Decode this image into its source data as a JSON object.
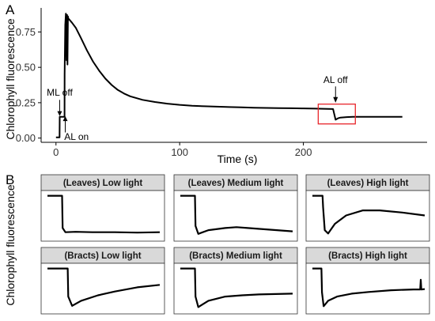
{
  "figure": {
    "panel_a_letter": "A",
    "panel_b_letter": "B",
    "shared_ylabel": "Chlorophyll fluorescence"
  },
  "chart_data": [
    {
      "type": "line",
      "panel": "A",
      "xlabel": "Time (s)",
      "ylabel": "Chlorophyll fluorescence",
      "xlim": [
        -12,
        300
      ],
      "ylim": [
        -0.03,
        0.92
      ],
      "xticks": [
        0,
        100,
        200
      ],
      "yticks": [
        0.0,
        0.25,
        0.5,
        0.75
      ],
      "ytick_labels": [
        "0.00",
        "0.25",
        "0.50",
        "0.75"
      ],
      "grid": false,
      "series": [
        {
          "x": [
            0,
            2.9,
            3.0,
            4,
            5,
            6.9,
            7.0,
            7.5,
            8,
            8.5,
            9,
            9.3,
            9.7,
            10,
            11,
            13,
            16,
            20,
            25,
            30,
            35,
            40,
            45,
            50,
            55,
            60,
            70,
            80,
            90,
            100,
            110,
            120,
            130,
            140,
            150,
            160,
            170,
            180,
            190,
            200,
            210,
            220,
            224,
            226,
            228,
            230,
            235,
            240,
            250,
            260,
            270,
            280
          ],
          "y": [
            0.005,
            0.005,
            0.15,
            0.15,
            0.15,
            0.15,
            0.45,
            0.8,
            0.88,
            0.55,
            0.87,
            0.52,
            0.86,
            0.845,
            0.835,
            0.815,
            0.78,
            0.71,
            0.62,
            0.54,
            0.475,
            0.42,
            0.375,
            0.34,
            0.315,
            0.295,
            0.27,
            0.255,
            0.243,
            0.235,
            0.229,
            0.225,
            0.222,
            0.219,
            0.217,
            0.215,
            0.213,
            0.212,
            0.211,
            0.21,
            0.208,
            0.206,
            0.205,
            0.13,
            0.14,
            0.145,
            0.148,
            0.15,
            0.15,
            0.15,
            0.15,
            0.15
          ]
        }
      ],
      "annotations": [
        {
          "text": "ML off",
          "x": 3,
          "y": 0.3
        },
        {
          "text": "AL on",
          "x": 8,
          "y": 0.01
        },
        {
          "text": "AL off",
          "x": 226,
          "y": 0.39
        }
      ],
      "highlight_box": {
        "xmin": 212,
        "xmax": 242,
        "ymin": 0.1,
        "ymax": 0.24,
        "color": "#e8262b"
      }
    },
    {
      "type": "line",
      "panel": "B",
      "ylabel": "Chlorophyll fluorescence",
      "axis_ticks": false,
      "strip_color": "#d9d9d9",
      "panels": [
        {
          "title": "(Leaves) Low light",
          "x": [
            0,
            0.13,
            0.135,
            0.16,
            0.25,
            0.4,
            0.6,
            0.8,
            1.0
          ],
          "y": [
            0.97,
            0.97,
            0.2,
            0.1,
            0.11,
            0.1,
            0.1,
            0.09,
            0.1
          ]
        },
        {
          "title": "(Leaves) Medium light",
          "x": [
            0,
            0.13,
            0.135,
            0.16,
            0.25,
            0.4,
            0.5,
            0.6,
            0.8,
            1.0
          ],
          "y": [
            0.97,
            0.97,
            0.25,
            0.06,
            0.15,
            0.2,
            0.22,
            0.2,
            0.16,
            0.12
          ]
        },
        {
          "title": "(Leaves) High light",
          "x": [
            0,
            0.09,
            0.095,
            0.11,
            0.14,
            0.2,
            0.3,
            0.45,
            0.6,
            0.8,
            1.0
          ],
          "y": [
            0.97,
            0.97,
            0.7,
            0.15,
            0.07,
            0.3,
            0.5,
            0.62,
            0.62,
            0.57,
            0.5
          ]
        },
        {
          "title": "(Bracts) Low light",
          "x": [
            0,
            0.18,
            0.185,
            0.22,
            0.3,
            0.45,
            0.6,
            0.8,
            1.0
          ],
          "y": [
            0.97,
            0.97,
            0.3,
            0.08,
            0.2,
            0.33,
            0.42,
            0.52,
            0.58
          ]
        },
        {
          "title": "(Bracts) Medium light",
          "x": [
            0,
            0.13,
            0.135,
            0.16,
            0.25,
            0.4,
            0.55,
            0.7,
            0.85,
            1.0
          ],
          "y": [
            0.97,
            0.97,
            0.3,
            0.05,
            0.2,
            0.3,
            0.33,
            0.35,
            0.36,
            0.37
          ]
        },
        {
          "title": "(Bracts) High light",
          "x": [
            0,
            0.08,
            0.085,
            0.1,
            0.14,
            0.22,
            0.35,
            0.5,
            0.7,
            0.9,
            0.96,
            0.965,
            0.97,
            1.0
          ],
          "y": [
            0.97,
            0.97,
            0.4,
            0.07,
            0.2,
            0.3,
            0.37,
            0.41,
            0.45,
            0.47,
            0.47,
            0.7,
            0.47,
            0.48
          ]
        }
      ]
    }
  ]
}
